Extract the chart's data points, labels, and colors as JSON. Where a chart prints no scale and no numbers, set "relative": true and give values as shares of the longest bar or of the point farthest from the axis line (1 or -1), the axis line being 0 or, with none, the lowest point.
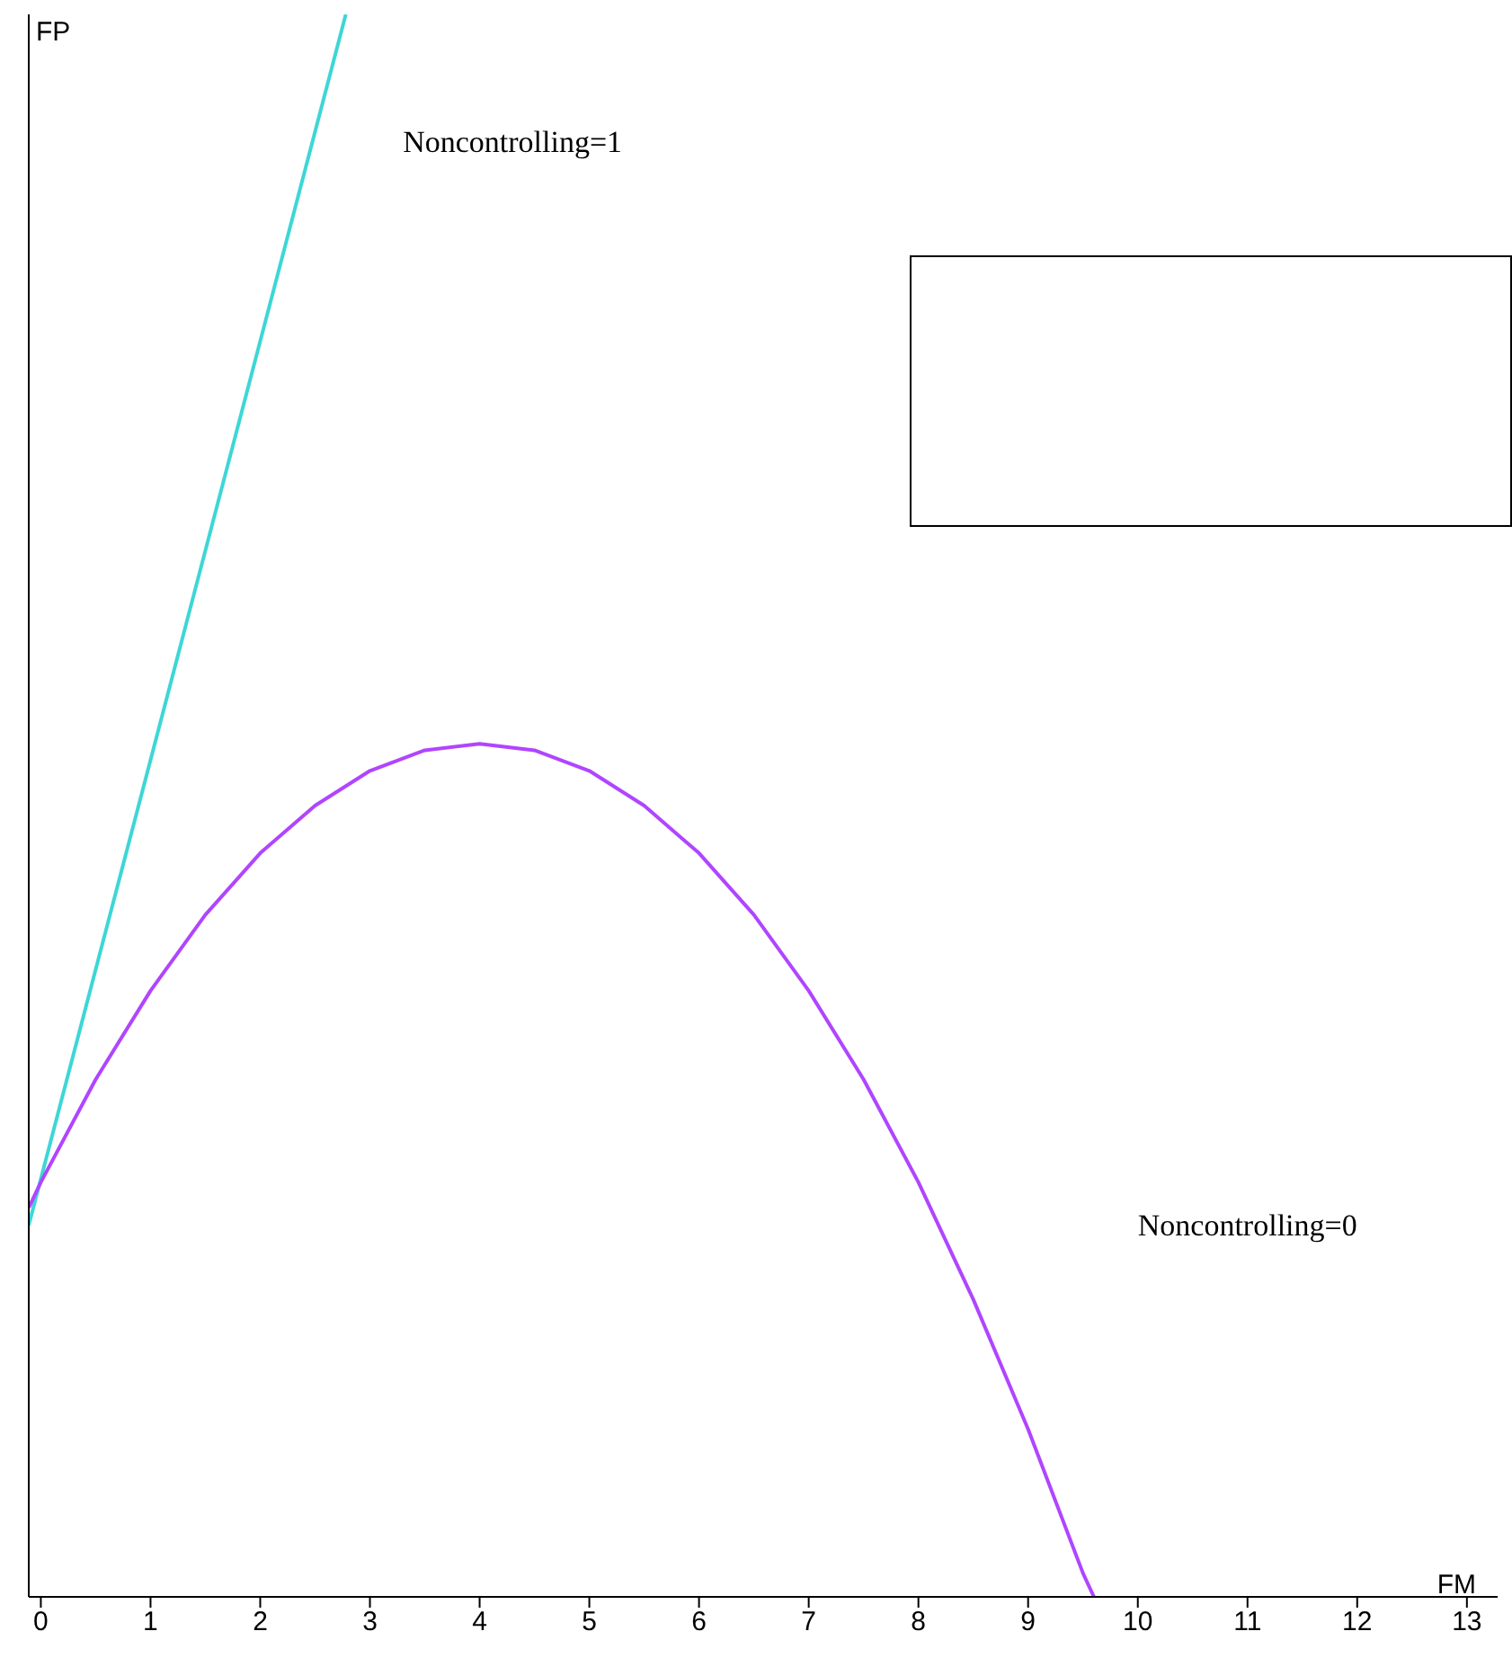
{
  "chart_data": {
    "type": "line",
    "relative": true,
    "xlabel": "FM",
    "ylabel": "FP",
    "xlim": [
      -0.11,
      13.28
    ],
    "xticks": [
      0,
      1,
      2,
      3,
      4,
      5,
      6,
      7,
      8,
      9,
      10,
      11,
      12,
      13
    ],
    "marker": "none",
    "line_style": "solid",
    "grid": false,
    "legend": false,
    "series": [
      {
        "name": "Noncontrolling=1",
        "color": "#3ed6d6",
        "x": [
          -0.11,
          2.78
        ],
        "values": [
          0.235,
          1.0
        ]
      },
      {
        "name": "Noncontrolling=0",
        "color": "#b045ff",
        "x": [
          -0.11,
          0,
          0.5,
          1,
          1.5,
          2,
          2.5,
          3,
          3.5,
          4,
          4.5,
          5,
          5.5,
          6,
          6.5,
          7,
          7.5,
          8,
          8.5,
          9,
          9.5,
          9.6
        ],
        "values": [
          0.246,
          0.262,
          0.327,
          0.383,
          0.431,
          0.47,
          0.5,
          0.522,
          0.535,
          0.539,
          0.535,
          0.522,
          0.5,
          0.47,
          0.431,
          0.383,
          0.327,
          0.262,
          0.188,
          0.106,
          0.015,
          0
        ]
      }
    ]
  }
}
